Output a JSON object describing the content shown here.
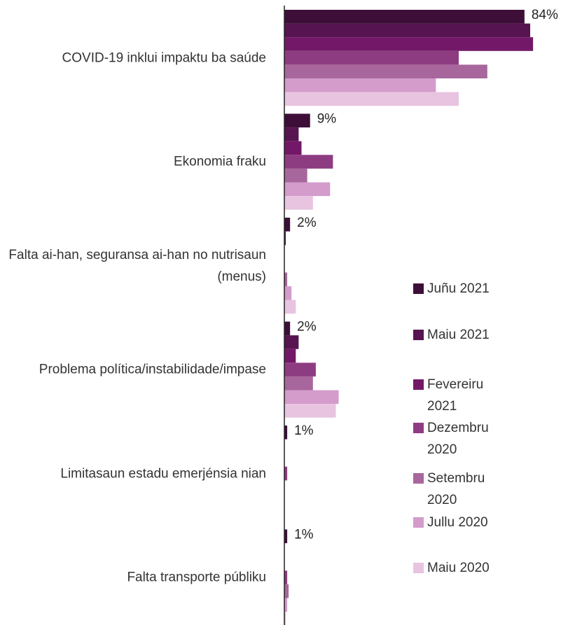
{
  "chart_data": {
    "type": "barh",
    "categories": [
      "COVID-19 inklui impaktu ba saúde",
      "Ekonomia fraku",
      "Falta ai-han, seguransa ai-han no nutrisaun (menus)",
      "Problema política/instabilidade/impase",
      "Limitasaun estadu emerjénsia nian",
      "Falta transporte públiku"
    ],
    "series": [
      {
        "name": "Juñu 2021",
        "color": "#3d0f38",
        "values": [
          84,
          9,
          2,
          2,
          1,
          1
        ],
        "value_labels": [
          "84%",
          "9%",
          "2%",
          "2%",
          "1%",
          "1%"
        ]
      },
      {
        "name": "Maiu 2021",
        "color": "#561450",
        "values": [
          86,
          5,
          0.5,
          5,
          0,
          0
        ]
      },
      {
        "name": "Fevereiru 2021",
        "color": "#731868",
        "values": [
          87,
          6,
          0,
          4,
          0,
          0
        ]
      },
      {
        "name": "Dezembru 2020",
        "color": "#8e3c82",
        "values": [
          61,
          17,
          0,
          11,
          1,
          1
        ]
      },
      {
        "name": "Setembru 2020",
        "color": "#a8679c",
        "values": [
          71,
          8,
          1,
          10,
          0,
          1.5
        ]
      },
      {
        "name": "Jullu 2020",
        "color": "#d39ccb",
        "values": [
          53,
          16,
          2.5,
          19,
          0,
          1
        ]
      },
      {
        "name": "Maiu 2020",
        "color": "#e8c4e1",
        "values": [
          61,
          10,
          4,
          18,
          0,
          0.5
        ]
      }
    ],
    "xlim": [
      0,
      98
    ]
  }
}
